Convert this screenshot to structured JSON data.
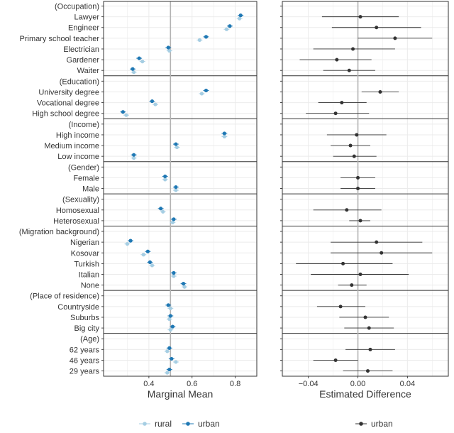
{
  "chart_data": {
    "type": "scatter",
    "rows": [
      {
        "label": "(Occupation)",
        "header": true
      },
      {
        "label": "Lawyer",
        "rural": 0.82,
        "urban": 0.825,
        "diff": 0.002,
        "diff_lo": -0.029,
        "diff_hi": 0.033
      },
      {
        "label": "Engineer",
        "rural": 0.76,
        "urban": 0.775,
        "diff": 0.015,
        "diff_lo": -0.021,
        "diff_hi": 0.051
      },
      {
        "label": "Primary school teacher",
        "rural": 0.635,
        "urban": 0.665,
        "diff": 0.03,
        "diff_lo": 0.0,
        "diff_hi": 0.06
      },
      {
        "label": "Electrician",
        "rural": 0.495,
        "urban": 0.49,
        "diff": -0.004,
        "diff_lo": -0.036,
        "diff_hi": 0.03
      },
      {
        "label": "Gardener",
        "rural": 0.37,
        "urban": 0.355,
        "diff": -0.017,
        "diff_lo": -0.047,
        "diff_hi": 0.011
      },
      {
        "label": "Waiter",
        "rural": 0.33,
        "urban": 0.325,
        "diff": -0.007,
        "diff_lo": -0.028,
        "diff_hi": 0.014
      },
      {
        "label": "(Education)",
        "header": true
      },
      {
        "label": "University degree",
        "rural": 0.645,
        "urban": 0.665,
        "diff": 0.018,
        "diff_lo": 0.003,
        "diff_hi": 0.033
      },
      {
        "label": "Vocational degree",
        "rural": 0.43,
        "urban": 0.415,
        "diff": -0.013,
        "diff_lo": -0.032,
        "diff_hi": 0.007
      },
      {
        "label": "High school degree",
        "rural": 0.295,
        "urban": 0.28,
        "diff": -0.018,
        "diff_lo": -0.042,
        "diff_hi": 0.009
      },
      {
        "label": "(Income)",
        "header": true
      },
      {
        "label": "High income",
        "rural": 0.75,
        "urban": 0.75,
        "diff": -0.001,
        "diff_lo": -0.025,
        "diff_hi": 0.023
      },
      {
        "label": "Medium income",
        "rural": 0.53,
        "urban": 0.525,
        "diff": -0.006,
        "diff_lo": -0.022,
        "diff_hi": 0.01
      },
      {
        "label": "Low income",
        "rural": 0.33,
        "urban": 0.33,
        "diff": -0.003,
        "diff_lo": -0.02,
        "diff_hi": 0.015
      },
      {
        "label": "(Gender)",
        "header": true
      },
      {
        "label": "Female",
        "rural": 0.475,
        "urban": 0.475,
        "diff": 0.0,
        "diff_lo": -0.014,
        "diff_hi": 0.014
      },
      {
        "label": "Male",
        "rural": 0.525,
        "urban": 0.525,
        "diff": 0.0,
        "diff_lo": -0.014,
        "diff_hi": 0.014
      },
      {
        "label": "(Sexuality)",
        "header": true
      },
      {
        "label": "Homosexual",
        "rural": 0.465,
        "urban": 0.455,
        "diff": -0.009,
        "diff_lo": -0.036,
        "diff_hi": 0.019
      },
      {
        "label": "Heterosexual",
        "rural": 0.51,
        "urban": 0.515,
        "diff": 0.002,
        "diff_lo": -0.007,
        "diff_hi": 0.01
      },
      {
        "label": "(Migration background)",
        "header": true
      },
      {
        "label": "Nigerian",
        "rural": 0.3,
        "urban": 0.315,
        "diff": 0.015,
        "diff_lo": -0.022,
        "diff_hi": 0.052
      },
      {
        "label": "Kosovar",
        "rural": 0.375,
        "urban": 0.395,
        "diff": 0.019,
        "diff_lo": -0.022,
        "diff_hi": 0.06
      },
      {
        "label": "Turkish",
        "rural": 0.415,
        "urban": 0.405,
        "diff": -0.012,
        "diff_lo": -0.05,
        "diff_hi": 0.028
      },
      {
        "label": "Italian",
        "rural": 0.515,
        "urban": 0.515,
        "diff": 0.002,
        "diff_lo": -0.038,
        "diff_hi": 0.041
      },
      {
        "label": "None",
        "rural": 0.565,
        "urban": 0.56,
        "diff": -0.005,
        "diff_lo": -0.016,
        "diff_hi": 0.007
      },
      {
        "label": "(Place of residence)",
        "header": true
      },
      {
        "label": "Countryside",
        "rural": 0.5,
        "urban": 0.49,
        "diff": -0.014,
        "diff_lo": -0.033,
        "diff_hi": 0.006
      },
      {
        "label": "Suburbs",
        "rural": 0.495,
        "urban": 0.5,
        "diff": 0.006,
        "diff_lo": -0.015,
        "diff_hi": 0.025
      },
      {
        "label": "Big city",
        "rural": 0.5,
        "urban": 0.51,
        "diff": 0.009,
        "diff_lo": -0.011,
        "diff_hi": 0.029
      },
      {
        "label": "(Age)",
        "header": true
      },
      {
        "label": "62 years",
        "rural": 0.485,
        "urban": 0.495,
        "diff": 0.01,
        "diff_lo": -0.01,
        "diff_hi": 0.03
      },
      {
        "label": "46 years",
        "rural": 0.525,
        "urban": 0.505,
        "diff": -0.018,
        "diff_lo": -0.036,
        "diff_hi": 0.0
      },
      {
        "label": "29 years",
        "rural": 0.485,
        "urban": 0.495,
        "diff": 0.008,
        "diff_lo": -0.012,
        "diff_hi": 0.028
      }
    ],
    "panels": [
      {
        "xlabel": "Marginal Mean",
        "xlim": [
          0.19,
          0.9
        ],
        "ticks": [
          0.4,
          0.6,
          0.8
        ],
        "tick_labels": [
          "0.4",
          "0.6",
          "0.8"
        ],
        "ref_line": 0.5
      },
      {
        "xlabel": "Estimated Difference",
        "xlim": [
          -0.061,
          0.073
        ],
        "ticks": [
          -0.04,
          0.0,
          0.04
        ],
        "tick_labels": [
          "−0.04",
          "0.00",
          "0.04"
        ],
        "ref_line": 0.0
      }
    ],
    "series": [
      {
        "name": "rural",
        "color": "#a6cee3"
      },
      {
        "name": "urban",
        "color": "#1f78b4"
      },
      {
        "name": "urban",
        "color": "#333333"
      }
    ],
    "legend_position": "bottom",
    "grid": true
  }
}
